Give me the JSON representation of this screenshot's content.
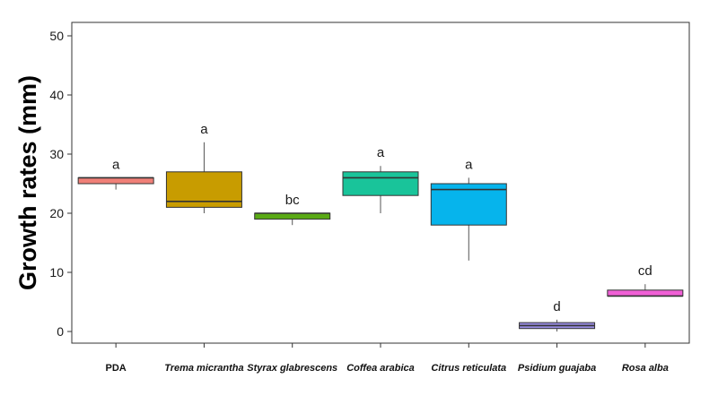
{
  "chart_data": {
    "type": "box",
    "ylabel": "Growth rates (mm)",
    "xlabel": "",
    "ylim": [
      -2,
      52
    ],
    "yticks": [
      0,
      10,
      20,
      30,
      40,
      50
    ],
    "grid": false,
    "categories": [
      "PDA",
      "Trema micrantha",
      "Styrax glabrescens",
      "Coffea arabica",
      "Citrus reticulata",
      "Psidium guajaba",
      "Rosa alba"
    ],
    "italic": [
      false,
      true,
      true,
      true,
      true,
      true,
      true
    ],
    "boxes": [
      {
        "min": 24,
        "q1": 25,
        "median": 26,
        "q3": 26,
        "max": 26,
        "color": "#f08078",
        "label": "a"
      },
      {
        "min": 20,
        "q1": 21,
        "median": 22,
        "q3": 27,
        "max": 32,
        "color": "#c89c00",
        "label": "a"
      },
      {
        "min": 18,
        "q1": 19,
        "median": 20,
        "q3": 20,
        "max": 20,
        "color": "#5aaa14",
        "label": "bc"
      },
      {
        "min": 20,
        "q1": 23,
        "median": 26,
        "q3": 27,
        "max": 28,
        "color": "#19c49a",
        "label": "a"
      },
      {
        "min": 12,
        "q1": 18,
        "median": 24,
        "q3": 25,
        "max": 26,
        "color": "#06b4ec",
        "label": "a"
      },
      {
        "min": 0,
        "q1": 0.5,
        "median": 1,
        "q3": 1.5,
        "max": 2,
        "color": "#9a8ee4",
        "label": "d"
      },
      {
        "min": 6,
        "q1": 6,
        "median": 6,
        "q3": 7,
        "max": 8,
        "color": "#f060d6",
        "label": "cd"
      }
    ]
  }
}
